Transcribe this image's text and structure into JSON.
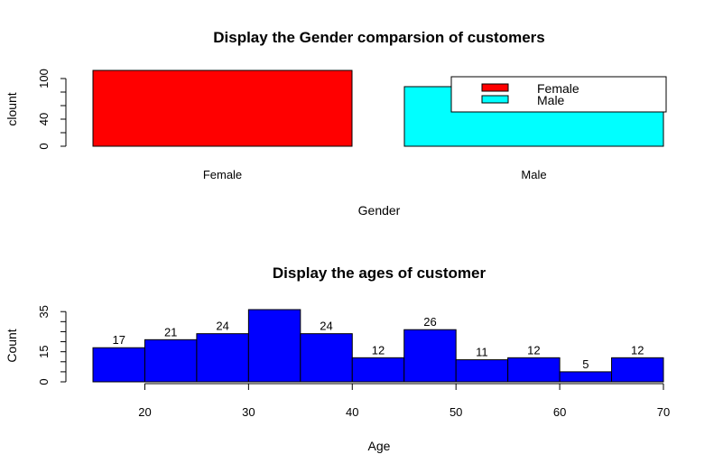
{
  "chart_data": [
    {
      "type": "bar",
      "title": "Display the Gender comparsion of customers",
      "xlabel": "Gender",
      "ylabel": "clount",
      "categories": [
        "Female",
        "Male"
      ],
      "values": [
        112,
        88
      ],
      "colors": [
        "#ff0000",
        "#00ffff"
      ],
      "ylim": [
        0,
        112
      ],
      "yticks": [
        0,
        40,
        100
      ],
      "grid": false,
      "legend": {
        "placement": "top-right",
        "entries": [
          {
            "label": "Female",
            "color": "#ff0000"
          },
          {
            "label": "Male",
            "color": "#00ffff"
          }
        ]
      }
    },
    {
      "type": "bar",
      "subtype": "histogram",
      "title": "Display the ages of customer",
      "xlabel": "Age",
      "ylabel": "Count",
      "bins": [
        [
          15,
          20
        ],
        [
          20,
          25
        ],
        [
          25,
          30
        ],
        [
          30,
          35
        ],
        [
          35,
          40
        ],
        [
          40,
          45
        ],
        [
          45,
          50
        ],
        [
          50,
          55
        ],
        [
          55,
          60
        ],
        [
          60,
          65
        ],
        [
          65,
          70
        ]
      ],
      "values": [
        17,
        21,
        24,
        36,
        24,
        12,
        26,
        11,
        12,
        5,
        12
      ],
      "data_labels": [
        "17",
        "21",
        "24",
        "",
        "24",
        "12",
        "26",
        "11",
        "12",
        "5",
        "12"
      ],
      "color": "#0000ff",
      "xlim": [
        15,
        70
      ],
      "xticks": [
        20,
        30,
        40,
        50,
        60,
        70
      ],
      "ylim": [
        0,
        36
      ],
      "yticks": [
        0,
        15,
        35
      ],
      "grid": false
    }
  ]
}
